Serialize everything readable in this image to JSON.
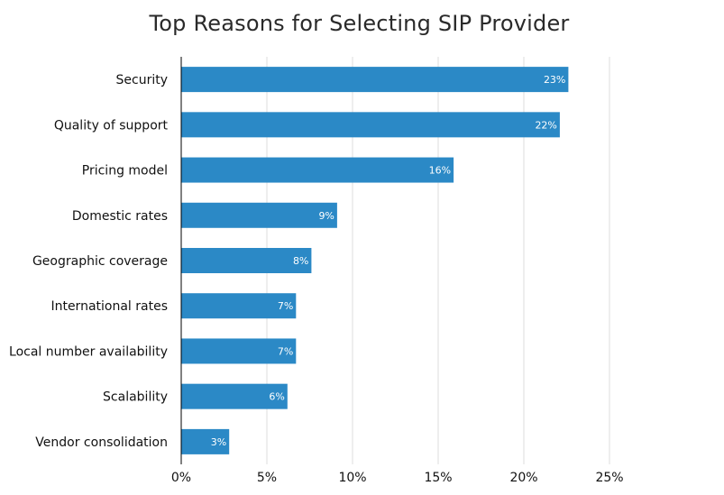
{
  "chart_data": {
    "type": "bar",
    "orientation": "horizontal",
    "title": "Top Reasons for Selecting SIP Provider",
    "xlabel": "",
    "ylabel": "",
    "categories": [
      "Security",
      "Quality of support",
      "Pricing model",
      "Domestic rates",
      "Geographic coverage",
      "International rates",
      "Local number availability",
      "Scalability",
      "Vendor consolidation"
    ],
    "values": [
      22.6,
      22.1,
      15.9,
      9.1,
      7.6,
      6.7,
      6.7,
      6.2,
      2.8
    ],
    "data_labels": [
      "23%",
      "22%",
      "16%",
      "9%",
      "8%",
      "7%",
      "7%",
      "6%",
      "3%"
    ],
    "xlim": [
      0,
      31
    ],
    "ticks": [
      0,
      5,
      10,
      15,
      20,
      25
    ],
    "tick_labels": [
      "0%",
      "5%",
      "10%",
      "15%",
      "20%",
      "25%"
    ],
    "grid": true,
    "legend": "none",
    "colors": {
      "bar": "#2b89c6",
      "grid": "#dcdcdc",
      "axis": "#000000",
      "value_label": "#ffffff"
    }
  }
}
